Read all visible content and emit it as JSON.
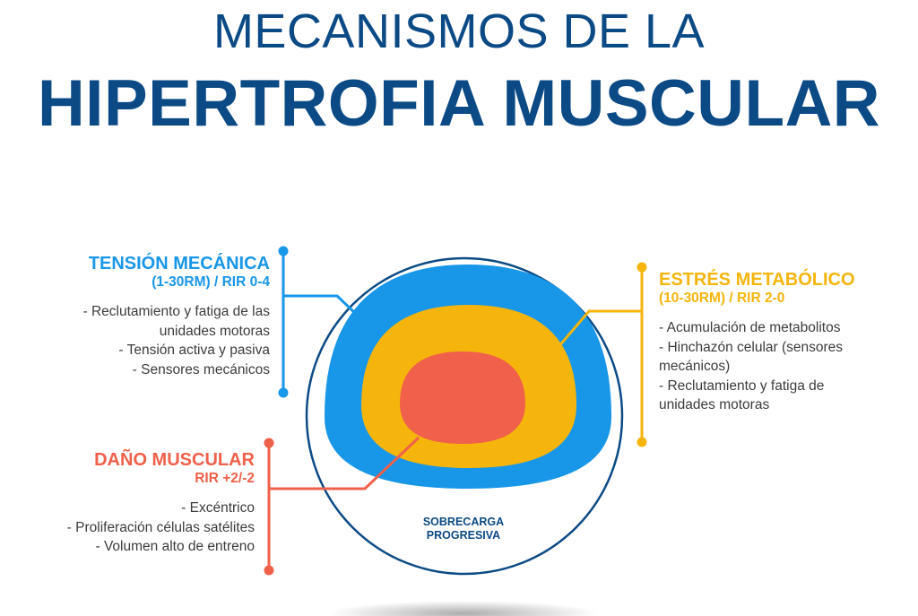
{
  "title": {
    "line1": "MECANISMOS DE LA",
    "line2": "HIPERTROFIA MUSCULAR"
  },
  "center_label": {
    "line1": "SOBRECARGA",
    "line2": "PROGRESIVA"
  },
  "colors": {
    "navy": "#0b4a85",
    "blue": "#1896e8",
    "yellow": "#f5b50d",
    "red": "#f0604a"
  },
  "tension": {
    "title": "TENSIÓN MECÁNICA",
    "subtitle": "(1-30RM) / RIR 0-4",
    "items": [
      "- Reclutamiento y fatiga de las",
      "unidades motoras",
      "- Tensión activa y pasiva",
      "- Sensores mecánicos"
    ]
  },
  "estres": {
    "title": "ESTRÉS METABÓLICO",
    "subtitle": "(10-30RM) / RIR 2-0",
    "items": [
      "- Acumulación de metabolitos",
      "- Hinchazón celular (sensores",
      "mecánicos)",
      "- Reclutamiento y fatiga de",
      "unidades motoras"
    ]
  },
  "dano": {
    "title": "DAÑO MUSCULAR",
    "subtitle": "RIR +2/-2",
    "items": [
      "- Excéntrico",
      "- Proliferación células satélites",
      "- Volumen alto de entreno"
    ]
  }
}
